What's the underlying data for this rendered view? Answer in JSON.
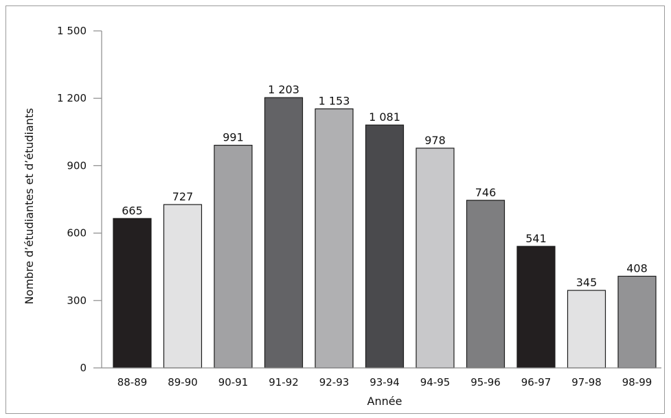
{
  "chart_data": {
    "type": "bar",
    "title": "",
    "xlabel": "Année",
    "ylabel": "Nombre d’étudiantes et d’étudiants",
    "categories": [
      "88-89",
      "89-90",
      "90-91",
      "91-92",
      "92-93",
      "93-94",
      "94-95",
      "95-96",
      "96-97",
      "97-98",
      "98-99"
    ],
    "values": [
      665,
      727,
      991,
      1203,
      1153,
      1081,
      978,
      746,
      541,
      345,
      408
    ],
    "value_labels": [
      "665",
      "727",
      "991",
      "1 203",
      "1 153",
      "1 081",
      "978",
      "746",
      "541",
      "345",
      "408"
    ],
    "bar_colors": [
      "#231f20",
      "#e2e2e3",
      "#a2a2a4",
      "#636366",
      "#b0b0b2",
      "#4a4a4d",
      "#c8c8ca",
      "#7e7e80",
      "#231f20",
      "#e2e2e3",
      "#939395"
    ],
    "ylim": [
      0,
      1500
    ],
    "yticks": [
      0,
      300,
      600,
      900,
      1200,
      1500
    ],
    "ytick_labels": [
      "0",
      "300",
      "600",
      "900",
      "1 200",
      "1 500"
    ],
    "grid": false,
    "legend": "none"
  }
}
